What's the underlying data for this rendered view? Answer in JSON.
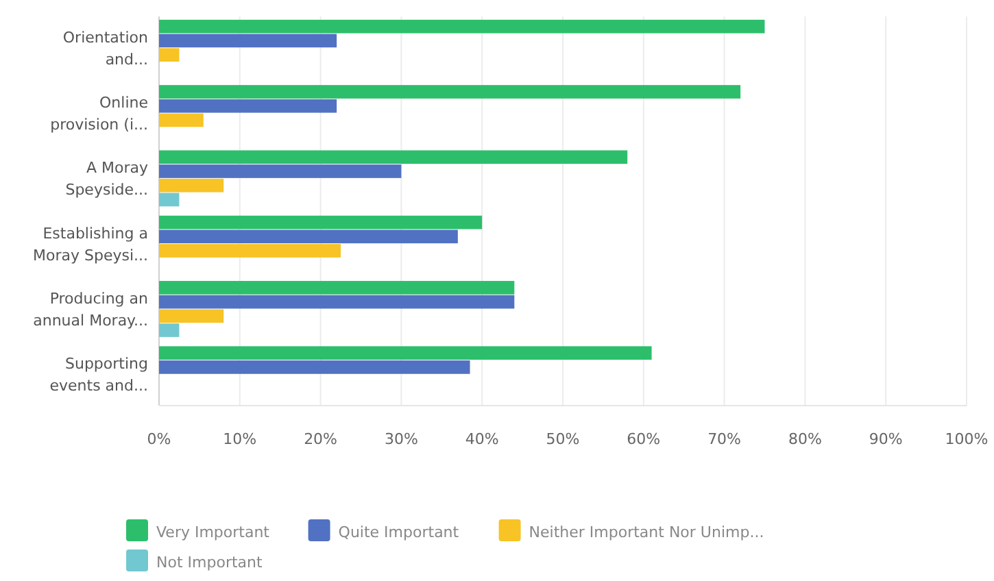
{
  "chart_data": {
    "type": "bar",
    "orientation": "horizontal",
    "categories": [
      "Orientation and...",
      "Online provision (i...",
      "A Moray Speyside...",
      "Establishing a Moray Speysi...",
      "Producing an annual Moray...",
      "Supporting events and..."
    ],
    "series": [
      {
        "name": "Very Important",
        "color": "#2dbe6c",
        "values": [
          75,
          72,
          58,
          40,
          44,
          61
        ]
      },
      {
        "name": "Quite Important",
        "color": "#5171c2",
        "values": [
          22,
          22,
          30,
          37,
          44,
          38.5
        ]
      },
      {
        "name": "Neither Important Nor Unimp...",
        "color": "#f7c325",
        "values": [
          2.5,
          5.5,
          8,
          22.5,
          8,
          null
        ]
      },
      {
        "name": "Not Important",
        "color": "#72c8d0",
        "values": [
          null,
          null,
          2.5,
          null,
          2.5,
          null
        ]
      }
    ],
    "xlim": [
      0,
      100
    ],
    "xticks": [
      {
        "value": 0,
        "label": "0%"
      },
      {
        "value": 10,
        "label": "10%"
      },
      {
        "value": 20,
        "label": "20%"
      },
      {
        "value": 30,
        "label": "30%"
      },
      {
        "value": 40,
        "label": "40%"
      },
      {
        "value": 50,
        "label": "50%"
      },
      {
        "value": 60,
        "label": "60%"
      },
      {
        "value": 70,
        "label": "70%"
      },
      {
        "value": 80,
        "label": "80%"
      },
      {
        "value": 90,
        "label": "90%"
      },
      {
        "value": 100,
        "label": "100%"
      }
    ],
    "grid": true,
    "legend": "bottom"
  }
}
